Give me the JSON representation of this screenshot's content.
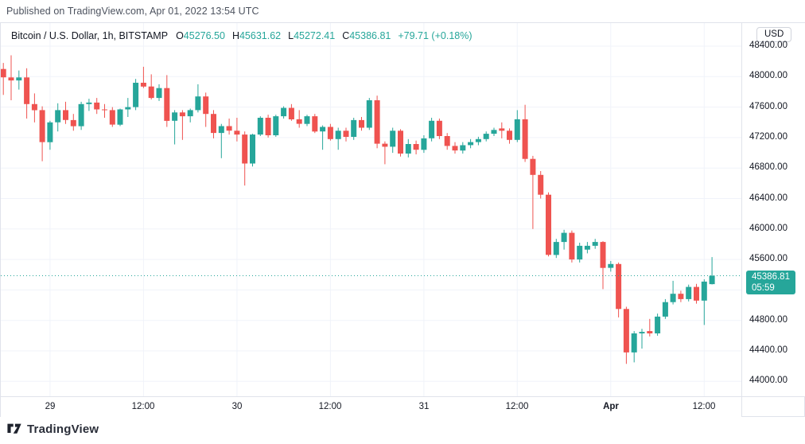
{
  "published_line": "Published on TradingView.com, Apr 01, 2022 13:54 UTC",
  "legend": {
    "symbol": "Bitcoin / U.S. Dollar, 1h, BITSTAMP",
    "ohlc": [
      {
        "label": "O",
        "value": "45276.50"
      },
      {
        "label": "H",
        "value": "45631.62"
      },
      {
        "label": "L",
        "value": "45272.41"
      },
      {
        "label": "C",
        "value": "45386.81"
      }
    ],
    "change": "+79.71 (+0.18%)"
  },
  "price_axis": {
    "currency_badge": "USD",
    "ticks": [
      "48400.00",
      "48000.00",
      "47600.00",
      "47200.00",
      "46800.00",
      "46400.00",
      "46000.00",
      "45600.00",
      "44800.00",
      "44400.00",
      "44000.00"
    ],
    "price_label": {
      "price": "45386.81",
      "countdown": "05:59"
    }
  },
  "time_axis": {
    "ticks": [
      {
        "index": 6,
        "label": "29",
        "bold": false
      },
      {
        "index": 18,
        "label": "12:00",
        "bold": false
      },
      {
        "index": 30,
        "label": "30",
        "bold": false
      },
      {
        "index": 42,
        "label": "12:00",
        "bold": false
      },
      {
        "index": 54,
        "label": "31",
        "bold": false
      },
      {
        "index": 66,
        "label": "12:00",
        "bold": false
      },
      {
        "index": 78,
        "label": "Apr",
        "bold": true
      },
      {
        "index": 90,
        "label": "12:00",
        "bold": false
      }
    ]
  },
  "watermark": {
    "text": "TradingView"
  },
  "colors": {
    "up": "#26a69a",
    "down": "#ef5350",
    "grid": "#f0f3fa",
    "border": "#e0e3eb",
    "axis_text": "#131722",
    "badge_bg": "#26a69a",
    "last_price_line": "#26a69a"
  },
  "chart_data": {
    "type": "candlestick",
    "title": "Bitcoin / U.S. Dollar",
    "interval": "1h",
    "exchange": "BITSTAMP",
    "currency": "USD",
    "ylim": [
      44000,
      48400
    ],
    "grid_step": 400,
    "last_price": 45386.81,
    "candles": [
      [
        48100,
        48180,
        47760,
        47990
      ],
      [
        47990,
        48280,
        47690,
        47950
      ],
      [
        47950,
        48080,
        47830,
        47990
      ],
      [
        47990,
        48110,
        47450,
        47640
      ],
      [
        47640,
        47780,
        47400,
        47560
      ],
      [
        47560,
        47610,
        46890,
        47140
      ],
      [
        47140,
        47420,
        47040,
        47400
      ],
      [
        47400,
        47650,
        47280,
        47560
      ],
      [
        47560,
        47670,
        47380,
        47430
      ],
      [
        47430,
        47510,
        47290,
        47350
      ],
      [
        47350,
        47670,
        47300,
        47640
      ],
      [
        47640,
        47710,
        47550,
        47660
      ],
      [
        47660,
        47720,
        47510,
        47570
      ],
      [
        47570,
        47640,
        47460,
        47560
      ],
      [
        47560,
        47600,
        47340,
        47370
      ],
      [
        47370,
        47580,
        47350,
        47570
      ],
      [
        47570,
        47720,
        47470,
        47600
      ],
      [
        47600,
        47970,
        47560,
        47920
      ],
      [
        47920,
        48130,
        47850,
        47870
      ],
      [
        47870,
        48030,
        47700,
        47720
      ],
      [
        47720,
        47900,
        47680,
        47850
      ],
      [
        47850,
        48020,
        47340,
        47420
      ],
      [
        47420,
        47560,
        47110,
        47530
      ],
      [
        47530,
        47560,
        47170,
        47480
      ],
      [
        47480,
        47580,
        47400,
        47560
      ],
      [
        47560,
        47900,
        47530,
        47740
      ],
      [
        47740,
        47790,
        47340,
        47510
      ],
      [
        47510,
        47560,
        47190,
        47260
      ],
      [
        47260,
        47380,
        46930,
        47350
      ],
      [
        47350,
        47450,
        47240,
        47290
      ],
      [
        47290,
        47460,
        47150,
        47240
      ],
      [
        47240,
        47280,
        46570,
        46860
      ],
      [
        46860,
        47250,
        46820,
        47240
      ],
      [
        47240,
        47480,
        47220,
        47460
      ],
      [
        47460,
        47500,
        47200,
        47230
      ],
      [
        47230,
        47500,
        47210,
        47480
      ],
      [
        47480,
        47610,
        47450,
        47590
      ],
      [
        47590,
        47640,
        47420,
        47440
      ],
      [
        47440,
        47560,
        47330,
        47380
      ],
      [
        47380,
        47500,
        47350,
        47480
      ],
      [
        47480,
        47510,
        47260,
        47280
      ],
      [
        47280,
        47360,
        47040,
        47340
      ],
      [
        47340,
        47380,
        47160,
        47180
      ],
      [
        47180,
        47330,
        47040,
        47290
      ],
      [
        47290,
        47330,
        47150,
        47210
      ],
      [
        47210,
        47460,
        47170,
        47430
      ],
      [
        47430,
        47470,
        47290,
        47330
      ],
      [
        47330,
        47720,
        47300,
        47690
      ],
      [
        47690,
        47750,
        47060,
        47120
      ],
      [
        47120,
        47150,
        46850,
        47080
      ],
      [
        47080,
        47330,
        47000,
        47290
      ],
      [
        47290,
        47310,
        46950,
        46990
      ],
      [
        46990,
        47180,
        46940,
        47115
      ],
      [
        47115,
        47160,
        46980,
        47040
      ],
      [
        47040,
        47230,
        47000,
        47190
      ],
      [
        47190,
        47460,
        47150,
        47420
      ],
      [
        47420,
        47450,
        47180,
        47220
      ],
      [
        47220,
        47260,
        47040,
        47090
      ],
      [
        47090,
        47140,
        46990,
        47030
      ],
      [
        47030,
        47140,
        46990,
        47100
      ],
      [
        47100,
        47180,
        47060,
        47140
      ],
      [
        47140,
        47210,
        47100,
        47180
      ],
      [
        47180,
        47280,
        47150,
        47250
      ],
      [
        47250,
        47330,
        47220,
        47300
      ],
      [
        47320,
        47400,
        47190,
        47290
      ],
      [
        47290,
        47320,
        47120,
        47170
      ],
      [
        47170,
        47560,
        47140,
        47440
      ],
      [
        47440,
        47630,
        46880,
        46920
      ],
      [
        46920,
        46960,
        46000,
        46710
      ],
      [
        46710,
        46760,
        46400,
        46450
      ],
      [
        46450,
        46480,
        45640,
        45660
      ],
      [
        45660,
        45870,
        45620,
        45830
      ],
      [
        45830,
        45990,
        45730,
        45950
      ],
      [
        45950,
        45980,
        45560,
        45600
      ],
      [
        45600,
        45820,
        45560,
        45780
      ],
      [
        45730,
        45830,
        45680,
        45780
      ],
      [
        45780,
        45870,
        45740,
        45830
      ],
      [
        45830,
        45840,
        45210,
        45490
      ],
      [
        45490,
        45580,
        45440,
        45540
      ],
      [
        45540,
        45560,
        44840,
        44950
      ],
      [
        44950,
        44980,
        44230,
        44380
      ],
      [
        44380,
        44660,
        44250,
        44630
      ],
      [
        44630,
        44690,
        44430,
        44650
      ],
      [
        44660,
        44820,
        44590,
        44630
      ],
      [
        44630,
        44890,
        44600,
        44850
      ],
      [
        44850,
        45080,
        44820,
        45040
      ],
      [
        45040,
        45320,
        45010,
        45150
      ],
      [
        45150,
        45190,
        45040,
        45080
      ],
      [
        45080,
        45270,
        45050,
        45240
      ],
      [
        45240,
        45280,
        45020,
        45060
      ],
      [
        45060,
        45340,
        44740,
        45310
      ],
      [
        45276.5,
        45631.62,
        45272.41,
        45386.81
      ]
    ]
  }
}
